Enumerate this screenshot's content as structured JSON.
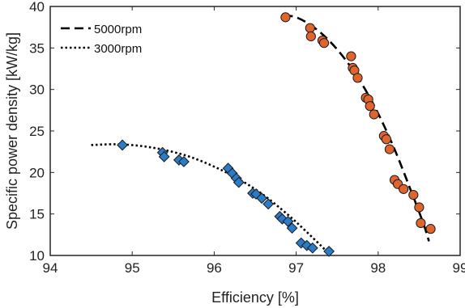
{
  "chart_data": {
    "type": "scatter",
    "xlabel": "Efficiency [%]",
    "ylabel": "Specific power density [kW/kg]",
    "xlim": [
      94,
      99
    ],
    "ylim": [
      10,
      40
    ],
    "xticks": [
      94,
      95,
      96,
      97,
      98,
      99
    ],
    "yticks": [
      10,
      15,
      20,
      25,
      30,
      35,
      40
    ],
    "grid": false,
    "legend_position": "top-left",
    "legend": [
      {
        "label": "5000rpm",
        "style": "dashed"
      },
      {
        "label": "3000rpm",
        "style": "dotted"
      }
    ],
    "colors": {
      "circles": "#e0652c",
      "diamonds": "#2c7bc6",
      "marker_edge": "#1a1a1a",
      "fit_line": "#000000"
    },
    "series": [
      {
        "marker": "circle",
        "fit": "5000rpm",
        "x": [
          96.87,
          97.17,
          97.18,
          97.32,
          97.34,
          97.67,
          97.69,
          97.71,
          97.75,
          97.85,
          97.88,
          97.9,
          97.95,
          98.07,
          98.1,
          98.14,
          98.2,
          98.24,
          98.31,
          98.43,
          98.5,
          98.52,
          98.64
        ],
        "y": [
          38.7,
          37.4,
          36.4,
          35.9,
          35.6,
          34.0,
          32.6,
          32.3,
          31.4,
          29.0,
          28.8,
          28.0,
          27.0,
          24.4,
          24.0,
          22.8,
          19.1,
          18.6,
          18.0,
          17.3,
          15.8,
          13.9,
          13.2
        ]
      },
      {
        "marker": "diamond",
        "fit": "3000rpm",
        "x": [
          94.88,
          95.37,
          95.39,
          95.57,
          95.63,
          96.17,
          96.22,
          96.27,
          96.3,
          96.47,
          96.51,
          96.58,
          96.66,
          96.8,
          96.83,
          96.9,
          96.95,
          97.06,
          97.13,
          97.2,
          97.4
        ],
        "y": [
          23.3,
          22.4,
          21.9,
          21.5,
          21.3,
          20.5,
          19.9,
          19.3,
          18.8,
          17.5,
          17.4,
          16.9,
          16.2,
          14.7,
          14.4,
          14.1,
          13.3,
          11.5,
          11.2,
          10.9,
          10.5
        ]
      }
    ],
    "fit_lines": [
      {
        "name": "5000rpm",
        "x": [
          96.85,
          97.0,
          97.2,
          97.4,
          97.6,
          97.8,
          98.0,
          98.2,
          98.4,
          98.55,
          98.62
        ],
        "y": [
          38.9,
          38.7,
          37.6,
          35.9,
          33.6,
          30.7,
          27.1,
          22.8,
          17.8,
          13.9,
          11.7
        ]
      },
      {
        "name": "3000rpm",
        "x": [
          94.5,
          94.8,
          95.1,
          95.4,
          95.7,
          96.0,
          96.3,
          96.6,
          96.9,
          97.1,
          97.3,
          97.4
        ],
        "y": [
          23.3,
          23.4,
          23.2,
          22.7,
          21.9,
          20.7,
          19.2,
          17.3,
          14.9,
          13.1,
          11.2,
          10.2
        ]
      }
    ]
  }
}
